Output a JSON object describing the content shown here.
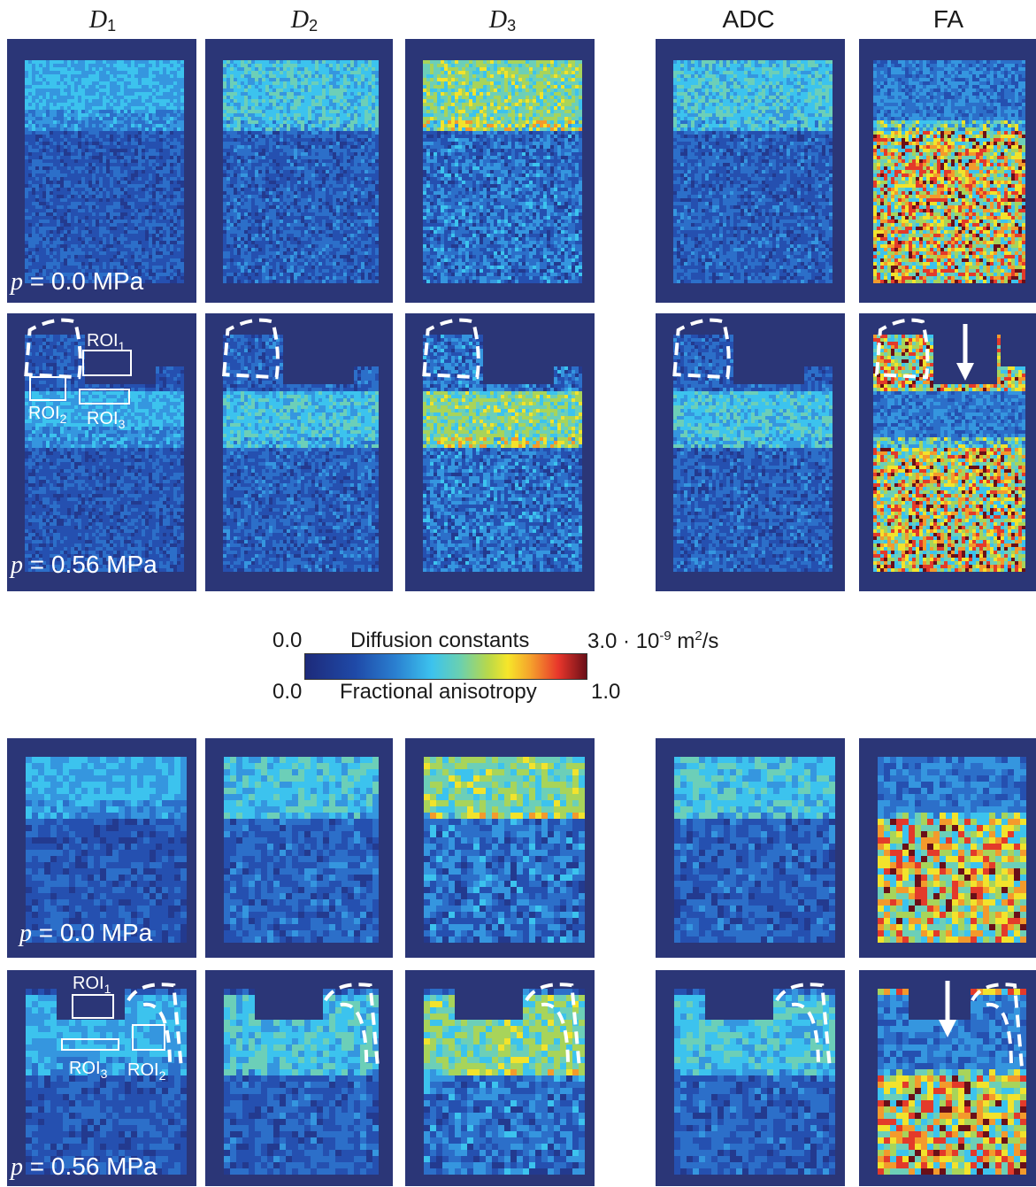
{
  "column_headers": [
    {
      "var": "D",
      "sub": "1"
    },
    {
      "var": "D",
      "sub": "2"
    },
    {
      "var": "D",
      "sub": "3"
    },
    {
      "text": "ADC"
    },
    {
      "text": "FA"
    }
  ],
  "pressure_labels": {
    "p0": {
      "var": "p",
      "text": " = 0.0 MPa"
    },
    "p56": {
      "var": "p",
      "text": " = 0.56 MPa"
    }
  },
  "roi_labels": [
    {
      "base": "ROI",
      "sub": "1"
    },
    {
      "base": "ROI",
      "sub": "2"
    },
    {
      "base": "ROI",
      "sub": "3"
    }
  ],
  "colorbar": {
    "left_top": "0.0",
    "title_top": "Diffusion constants",
    "right_top_prefix": "3.0 · 10",
    "right_top_exp": "-9",
    "right_top_unit": " m",
    "right_top_unit_exp": "2",
    "right_top_suffix": "/s",
    "left_bottom": "0.0",
    "title_bottom": "Fractional anisotropy",
    "right_bottom": "1.0"
  },
  "colors": {
    "background_blue": "#2b3677",
    "cyan": "#3cc3ee",
    "green": "#9ed063",
    "yellow": "#f6e62a",
    "red": "#e8362b",
    "dark_red": "#6a0f18"
  },
  "icons": [
    "arrow-down-icon",
    "dashed-outline-icon"
  ]
}
